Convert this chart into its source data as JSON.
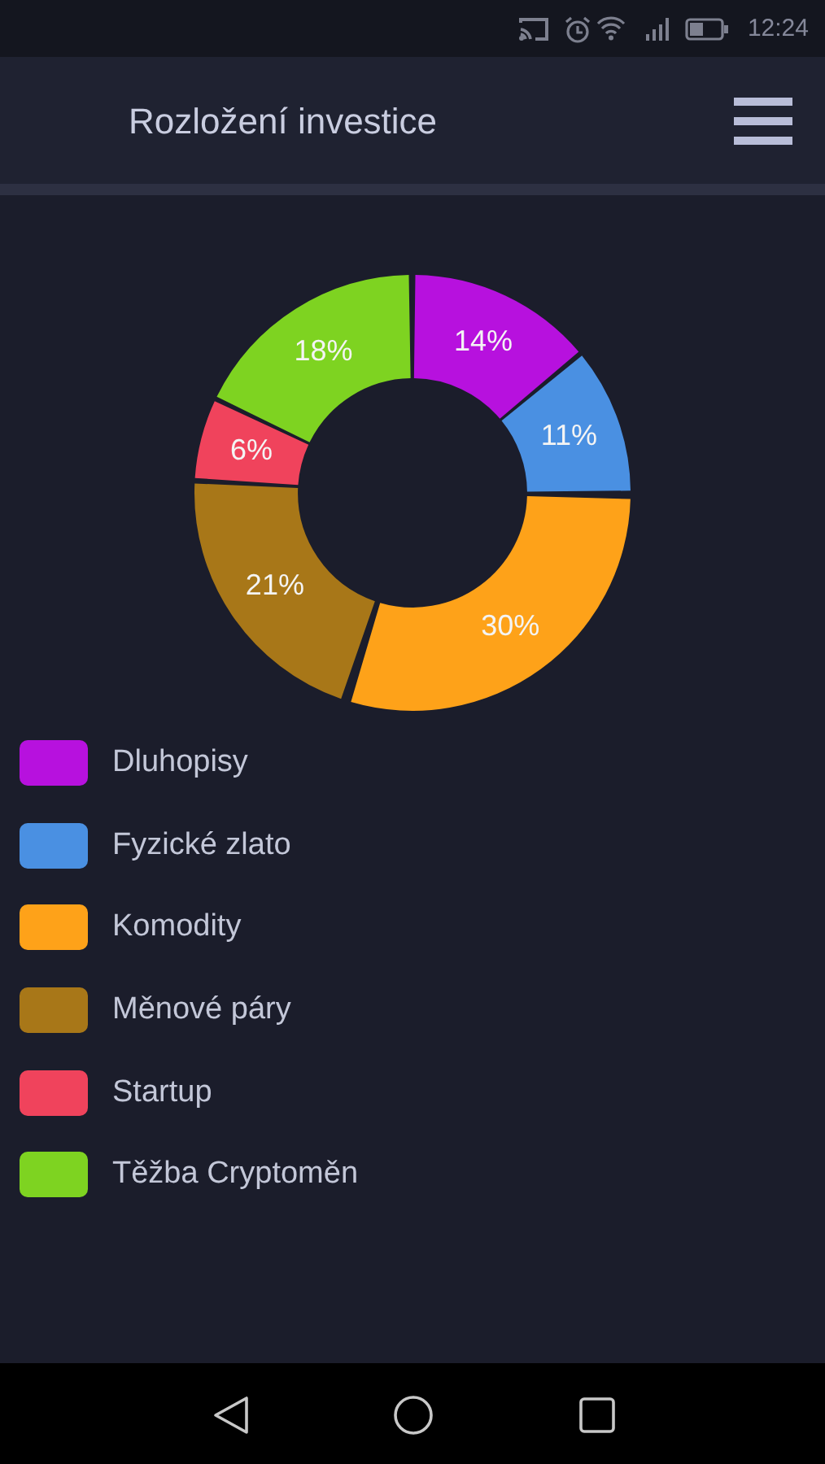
{
  "chart_data": {
    "type": "donut",
    "title": "Rozložení investice",
    "categories": [
      "Dluhopisy",
      "Fyzické zlato",
      "Komodity",
      "Měnové páry",
      "Startup",
      "Těžba Cryptoměn"
    ],
    "values": [
      14,
      11,
      30,
      21,
      6,
      18
    ],
    "colors": [
      "#b711de",
      "#4a90e2",
      "#fea219",
      "#a87718",
      "#f0435c",
      "#7ed321"
    ],
    "value_labels": [
      "14%",
      "11%",
      "30%",
      "21%",
      "6%",
      "18%"
    ],
    "legend": "bottom",
    "annotations": [
      "12:24"
    ]
  }
}
